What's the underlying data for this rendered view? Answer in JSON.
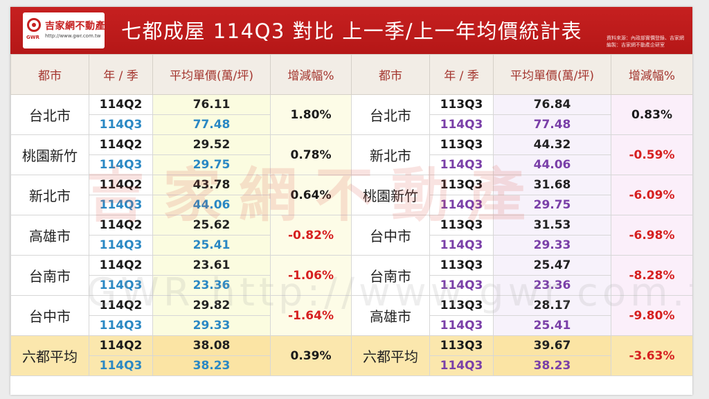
{
  "header": {
    "logo_name": "吉家網不動產",
    "logo_url": "http://www.gwr.com.tw",
    "logo_abbr": "GWR",
    "title": "七都成屋 114Q3 對比 上一季/上一年均價統計表",
    "source_line1": "資料來源：內政部實價登錄、吉家網",
    "source_line2": "編製：吉家網不動產企研室"
  },
  "columns": [
    "都市",
    "年 / 季",
    "平均單價(萬/坪)",
    "增減幅%",
    "都市",
    "年 / 季",
    "平均單價(萬/坪)",
    "增減幅%"
  ],
  "watermark": {
    "main": "吉家網不動產",
    "sub": "GWR http://www.gwr.com.tw"
  },
  "rows": [
    {
      "left": {
        "city": "台北市",
        "q1": "114Q2",
        "v1": "76.11",
        "q2": "114Q3",
        "v2": "77.48",
        "chg": "1.80%",
        "chg_dir": "pos"
      },
      "right": {
        "city": "台北市",
        "q1": "113Q3",
        "v1": "76.84",
        "q2": "114Q3",
        "v2": "77.48",
        "chg": "0.83%",
        "chg_dir": "pos"
      }
    },
    {
      "left": {
        "city": "桃園新竹",
        "q1": "114Q2",
        "v1": "29.52",
        "q2": "114Q3",
        "v2": "29.75",
        "chg": "0.78%",
        "chg_dir": "pos"
      },
      "right": {
        "city": "新北市",
        "q1": "113Q3",
        "v1": "44.32",
        "q2": "114Q3",
        "v2": "44.06",
        "chg": "-0.59%",
        "chg_dir": "neg"
      }
    },
    {
      "left": {
        "city": "新北市",
        "q1": "114Q2",
        "v1": "43.78",
        "q2": "114Q3",
        "v2": "44.06",
        "chg": "0.64%",
        "chg_dir": "pos"
      },
      "right": {
        "city": "桃園新竹",
        "q1": "113Q3",
        "v1": "31.68",
        "q2": "114Q3",
        "v2": "29.75",
        "chg": "-6.09%",
        "chg_dir": "neg"
      }
    },
    {
      "left": {
        "city": "高雄市",
        "q1": "114Q2",
        "v1": "25.62",
        "q2": "114Q3",
        "v2": "25.41",
        "chg": "-0.82%",
        "chg_dir": "neg"
      },
      "right": {
        "city": "台中市",
        "q1": "113Q3",
        "v1": "31.53",
        "q2": "114Q3",
        "v2": "29.33",
        "chg": "-6.98%",
        "chg_dir": "neg"
      }
    },
    {
      "left": {
        "city": "台南市",
        "q1": "114Q2",
        "v1": "23.61",
        "q2": "114Q3",
        "v2": "23.36",
        "chg": "-1.06%",
        "chg_dir": "neg"
      },
      "right": {
        "city": "台南市",
        "q1": "113Q3",
        "v1": "25.47",
        "q2": "114Q3",
        "v2": "23.36",
        "chg": "-8.28%",
        "chg_dir": "neg"
      }
    },
    {
      "left": {
        "city": "台中市",
        "q1": "114Q2",
        "v1": "29.82",
        "q2": "114Q3",
        "v2": "29.33",
        "chg": "-1.64%",
        "chg_dir": "neg"
      },
      "right": {
        "city": "高雄市",
        "q1": "113Q3",
        "v1": "28.17",
        "q2": "114Q3",
        "v2": "25.41",
        "chg": "-9.80%",
        "chg_dir": "neg"
      }
    },
    {
      "left": {
        "city": "六都平均",
        "q1": "114Q2",
        "v1": "38.08",
        "q2": "114Q3",
        "v2": "38.23",
        "chg": "0.39%",
        "chg_dir": "pos"
      },
      "right": {
        "city": "六都平均",
        "q1": "113Q3",
        "v1": "39.67",
        "q2": "114Q3",
        "v2": "38.23",
        "chg": "-3.63%",
        "chg_dir": "neg"
      }
    }
  ]
}
